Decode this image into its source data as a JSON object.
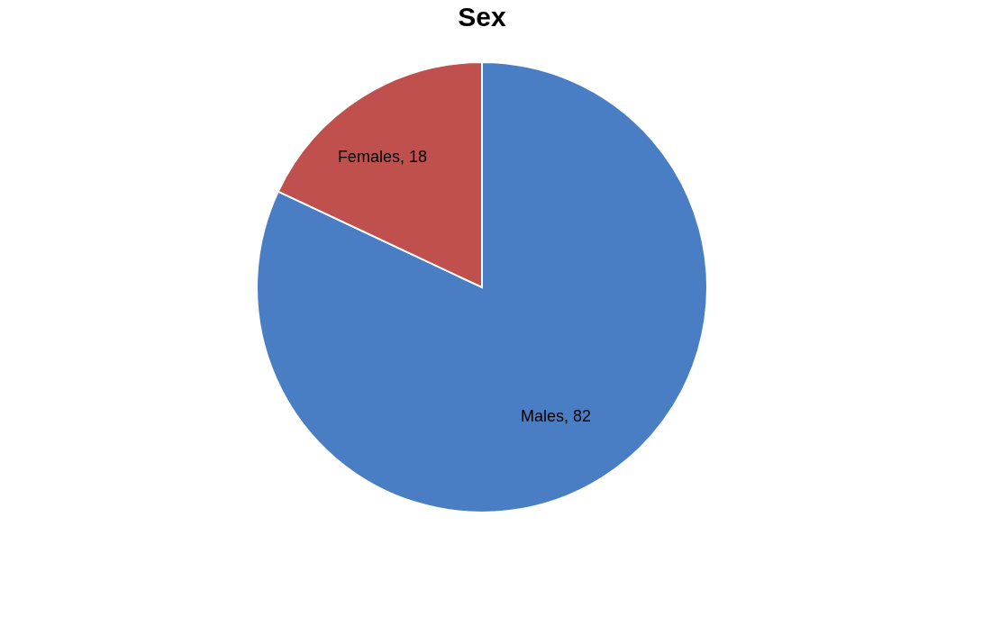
{
  "chart_data": {
    "type": "pie",
    "title": "Sex",
    "categories": [
      "Males",
      "Females"
    ],
    "values": [
      82,
      18
    ],
    "value_labels": [
      ", 82",
      ", 18"
    ],
    "colors": [
      "#4a7ec4",
      "#c0504d"
    ],
    "legend": false
  }
}
